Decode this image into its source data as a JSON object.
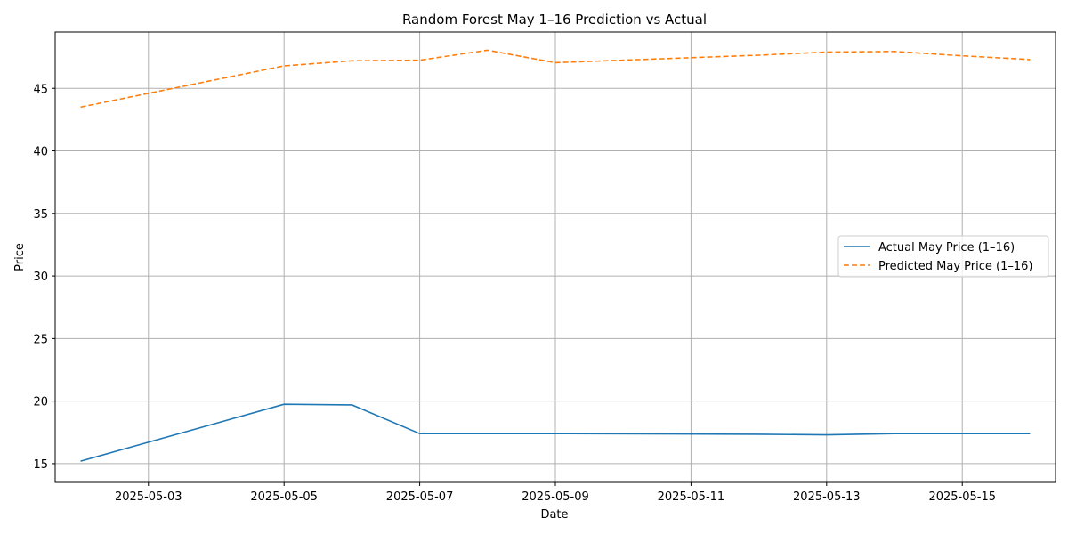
{
  "chart_data": {
    "type": "line",
    "title": "Random Forest May 1–16 Prediction vs Actual",
    "xlabel": "Date",
    "ylabel": "Price",
    "x_range": [
      "2025-05-01T15:00",
      "2025-05-16T09:00"
    ],
    "ylim": [
      13.5,
      49.5
    ],
    "x_ticks": [
      "2025-05-03",
      "2025-05-05",
      "2025-05-07",
      "2025-05-09",
      "2025-05-11",
      "2025-05-13",
      "2025-05-15"
    ],
    "y_ticks": [
      15,
      20,
      25,
      30,
      35,
      40,
      45
    ],
    "grid": true,
    "legend_position": "center-right",
    "series": [
      {
        "name": "Actual May Price (1–16)",
        "color": "#1f77b4",
        "style": "solid",
        "x": [
          "2025-05-02",
          "2025-05-05",
          "2025-05-06",
          "2025-05-07",
          "2025-05-08",
          "2025-05-09",
          "2025-05-12",
          "2025-05-13",
          "2025-05-14",
          "2025-05-15",
          "2025-05-16"
        ],
        "values": [
          15.2,
          19.75,
          19.7,
          17.4,
          17.4,
          17.4,
          17.35,
          17.3,
          17.4,
          17.4,
          17.4
        ]
      },
      {
        "name": "Predicted May Price (1–16)",
        "color": "#ff7f0e",
        "style": "dashed",
        "x": [
          "2025-05-02",
          "2025-05-05",
          "2025-05-06",
          "2025-05-07",
          "2025-05-08",
          "2025-05-09",
          "2025-05-12",
          "2025-05-13",
          "2025-05-14",
          "2025-05-15",
          "2025-05-16"
        ],
        "values": [
          43.5,
          46.8,
          47.2,
          47.25,
          48.05,
          47.05,
          47.65,
          47.9,
          47.95,
          47.6,
          47.3
        ]
      }
    ]
  }
}
